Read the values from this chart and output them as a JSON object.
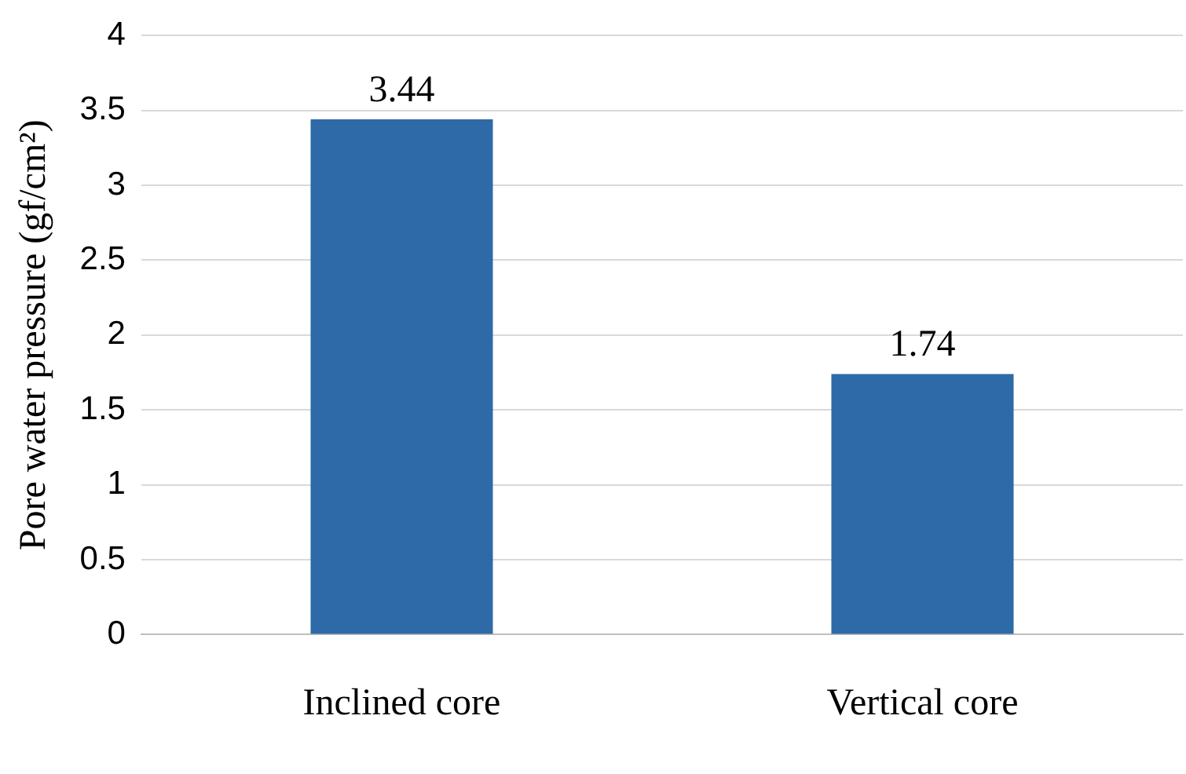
{
  "chart_data": {
    "type": "bar",
    "ylabel": "Pore water pressure (gf/cm²)",
    "categories": [
      "Inclined core",
      "Vertical core"
    ],
    "values": [
      3.44,
      1.74
    ],
    "color": "#2e6aa8",
    "ylim": [
      0,
      4
    ],
    "yticks": [
      0,
      0.5,
      1,
      1.5,
      2,
      2.5,
      3,
      3.5,
      4
    ],
    "grid": "y",
    "data_labels": true
  }
}
